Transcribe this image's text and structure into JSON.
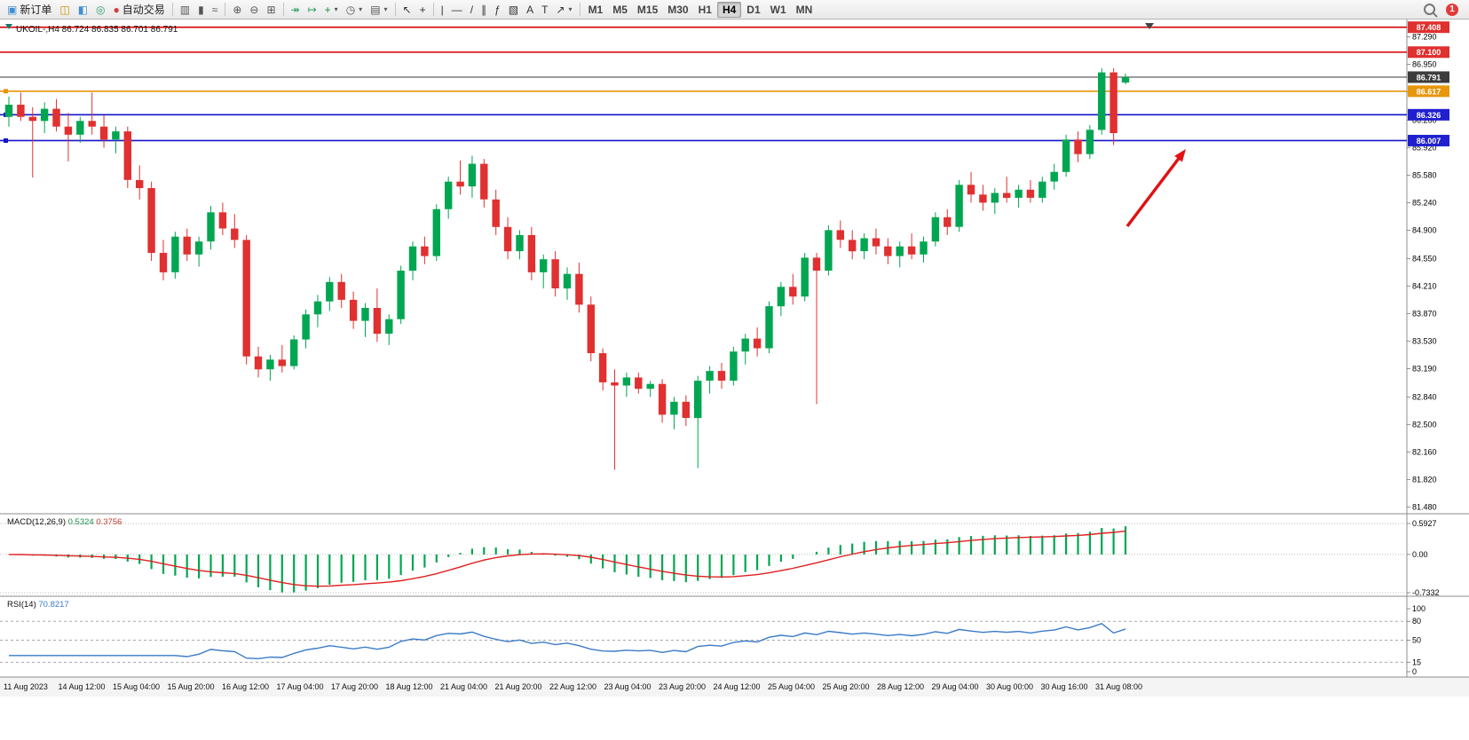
{
  "toolbar": {
    "items": [
      {
        "name": "new-order-button",
        "type": "button",
        "glyph": "▣",
        "glyph_color": "#3f8fd2",
        "label": "新订单"
      },
      {
        "name": "market-watch-icon",
        "type": "icon",
        "glyph": "◫",
        "glyph_color": "#c99700"
      },
      {
        "name": "data-window-icon",
        "type": "icon",
        "glyph": "◧",
        "glyph_color": "#3f8fd2"
      },
      {
        "name": "navigator-icon",
        "type": "icon",
        "glyph": "◎",
        "glyph_color": "#2e9e63"
      },
      {
        "name": "autotrading-button",
        "type": "button",
        "glyph": "●",
        "glyph_color": "#d43c3c",
        "label": "自动交易"
      },
      {
        "type": "sep"
      },
      {
        "name": "bar-chart-icon",
        "type": "icon",
        "glyph": "▥",
        "glyph_color": "#555555"
      },
      {
        "name": "candlestick-chart-icon",
        "type": "icon",
        "glyph": "▮",
        "glyph_color": "#555555"
      },
      {
        "name": "line-chart-icon",
        "type": "icon",
        "glyph": "≈",
        "glyph_color": "#555555"
      },
      {
        "type": "sep"
      },
      {
        "name": "zoom-in-icon",
        "type": "icon",
        "glyph": "⊕",
        "glyph_color": "#555555"
      },
      {
        "name": "zoom-out-icon",
        "type": "icon",
        "glyph": "⊖",
        "glyph_color": "#555555"
      },
      {
        "name": "tile-windows-icon",
        "type": "icon",
        "glyph": "⊞",
        "glyph_color": "#555555"
      },
      {
        "type": "sep"
      },
      {
        "name": "auto-scroll-icon",
        "type": "icon",
        "glyph": "↠",
        "glyph_color": "#2e9e63"
      },
      {
        "name": "chart-shift-icon",
        "type": "icon",
        "glyph": "↦",
        "glyph_color": "#2e9e63"
      },
      {
        "name": "indicators-button",
        "type": "icon",
        "glyph": "+",
        "glyph_color": "#1f8a4c",
        "caret": true
      },
      {
        "name": "periods-button",
        "type": "icon",
        "glyph": "◷",
        "glyph_color": "#555555",
        "caret": true
      },
      {
        "name": "templates-button",
        "type": "icon",
        "glyph": "▤",
        "glyph_color": "#555555",
        "caret": true
      },
      {
        "type": "sep"
      },
      {
        "name": "cursor-icon",
        "type": "icon",
        "glyph": "↖",
        "glyph_color": "#333333"
      },
      {
        "name": "crosshair-icon",
        "type": "icon",
        "glyph": "+",
        "glyph_color": "#333333"
      },
      {
        "type": "sep"
      },
      {
        "name": "vertical-line-icon",
        "type": "icon",
        "glyph": "|",
        "glyph_color": "#333333"
      },
      {
        "name": "horizontal-line-icon",
        "type": "icon",
        "glyph": "—",
        "glyph_color": "#333333"
      },
      {
        "name": "trendline-icon",
        "type": "icon",
        "glyph": "/",
        "glyph_color": "#333333"
      },
      {
        "name": "channel-icon",
        "type": "icon",
        "glyph": "∥",
        "glyph_color": "#333333"
      },
      {
        "name": "fibonacci-icon",
        "type": "icon",
        "glyph": "ƒ",
        "glyph_color": "#333333"
      },
      {
        "name": "shapes-icon",
        "type": "icon",
        "glyph": "▧",
        "glyph_color": "#333333"
      },
      {
        "name": "text-icon",
        "type": "icon",
        "glyph": "A",
        "glyph_color": "#333333"
      },
      {
        "name": "text-label-icon",
        "type": "icon",
        "glyph": "T",
        "glyph_color": "#333333"
      },
      {
        "name": "arrows-tool-icon",
        "type": "icon",
        "glyph": "↗",
        "glyph_color": "#333333",
        "caret": true
      },
      {
        "type": "sep"
      },
      {
        "name": "tf-m1",
        "type": "tf",
        "label": "M1"
      },
      {
        "name": "tf-m5",
        "type": "tf",
        "label": "M5"
      },
      {
        "name": "tf-m15",
        "type": "tf",
        "label": "M15"
      },
      {
        "name": "tf-m30",
        "type": "tf",
        "label": "M30"
      },
      {
        "name": "tf-h1",
        "type": "tf",
        "label": "H1"
      },
      {
        "name": "tf-h4",
        "type": "tf",
        "label": "H4",
        "active": true
      },
      {
        "name": "tf-d1",
        "type": "tf",
        "label": "D1"
      },
      {
        "name": "tf-w1",
        "type": "tf",
        "label": "W1"
      },
      {
        "name": "tf-mn",
        "type": "tf",
        "label": "MN"
      }
    ],
    "right": {
      "badge": "1"
    }
  },
  "chart_data": {
    "type": "candlestick",
    "title": "UKOIL-,H4",
    "ohlc_label": "86.724 86.835 86.701 86.791",
    "ylim": [
      81.44,
      87.47
    ],
    "colors": {
      "up": "#00A651",
      "down": "#E03030",
      "macd_hist": "#00A651",
      "macd_signal": "#E02020",
      "rsi_line": "#3A7BC8"
    },
    "candles": [
      [
        86.3,
        86.55,
        86.18,
        86.45
      ],
      [
        86.45,
        86.6,
        86.25,
        86.3
      ],
      [
        86.3,
        86.42,
        85.55,
        86.25
      ],
      [
        86.25,
        86.48,
        86.1,
        86.4
      ],
      [
        86.4,
        86.52,
        86.12,
        86.18
      ],
      [
        86.18,
        86.35,
        85.75,
        86.08
      ],
      [
        86.08,
        86.3,
        85.98,
        86.25
      ],
      [
        86.25,
        86.6,
        86.08,
        86.18
      ],
      [
        86.18,
        86.32,
        85.92,
        86.02
      ],
      [
        86.02,
        86.18,
        85.85,
        86.12
      ],
      [
        86.12,
        86.18,
        85.42,
        85.52
      ],
      [
        85.52,
        85.7,
        85.28,
        85.42
      ],
      [
        85.42,
        85.5,
        84.52,
        84.62
      ],
      [
        84.62,
        84.78,
        84.28,
        84.38
      ],
      [
        84.38,
        84.88,
        84.3,
        84.82
      ],
      [
        84.82,
        84.92,
        84.52,
        84.6
      ],
      [
        84.6,
        84.82,
        84.45,
        84.76
      ],
      [
        84.76,
        85.2,
        84.66,
        85.12
      ],
      [
        85.12,
        85.24,
        84.84,
        84.92
      ],
      [
        84.92,
        85.1,
        84.68,
        84.78
      ],
      [
        84.78,
        84.84,
        83.24,
        83.34
      ],
      [
        83.34,
        83.46,
        83.08,
        83.18
      ],
      [
        83.18,
        83.36,
        83.04,
        83.3
      ],
      [
        83.3,
        83.48,
        83.14,
        83.22
      ],
      [
        83.22,
        83.6,
        83.18,
        83.55
      ],
      [
        83.55,
        83.92,
        83.44,
        83.86
      ],
      [
        83.86,
        84.1,
        83.7,
        84.02
      ],
      [
        84.02,
        84.32,
        83.9,
        84.26
      ],
      [
        84.26,
        84.36,
        83.94,
        84.04
      ],
      [
        84.04,
        84.14,
        83.68,
        83.78
      ],
      [
        83.78,
        84.0,
        83.58,
        83.94
      ],
      [
        83.94,
        84.18,
        83.52,
        83.62
      ],
      [
        83.62,
        83.86,
        83.48,
        83.8
      ],
      [
        83.8,
        84.46,
        83.74,
        84.4
      ],
      [
        84.4,
        84.76,
        84.28,
        84.7
      ],
      [
        84.7,
        84.82,
        84.48,
        84.58
      ],
      [
        84.58,
        85.22,
        84.52,
        85.16
      ],
      [
        85.16,
        85.56,
        85.04,
        85.5
      ],
      [
        85.5,
        85.76,
        85.34,
        85.44
      ],
      [
        85.44,
        85.82,
        85.3,
        85.72
      ],
      [
        85.72,
        85.78,
        85.18,
        85.28
      ],
      [
        85.28,
        85.4,
        84.84,
        84.94
      ],
      [
        84.94,
        85.06,
        84.54,
        84.64
      ],
      [
        84.64,
        84.9,
        84.54,
        84.84
      ],
      [
        84.84,
        84.94,
        84.28,
        84.38
      ],
      [
        84.38,
        84.6,
        84.18,
        84.54
      ],
      [
        84.54,
        84.64,
        84.08,
        84.18
      ],
      [
        84.18,
        84.44,
        84.04,
        84.36
      ],
      [
        84.36,
        84.5,
        83.88,
        83.98
      ],
      [
        83.98,
        84.08,
        83.28,
        83.38
      ],
      [
        83.38,
        83.44,
        82.92,
        83.02
      ],
      [
        83.02,
        83.18,
        81.94,
        82.98
      ],
      [
        82.98,
        83.14,
        82.84,
        83.08
      ],
      [
        83.08,
        83.14,
        82.88,
        82.94
      ],
      [
        82.94,
        83.04,
        82.84,
        83.0
      ],
      [
        83.0,
        83.06,
        82.52,
        82.62
      ],
      [
        82.62,
        82.84,
        82.44,
        82.78
      ],
      [
        82.78,
        82.86,
        82.48,
        82.58
      ],
      [
        82.58,
        83.1,
        81.96,
        83.04
      ],
      [
        83.04,
        83.22,
        82.88,
        83.16
      ],
      [
        83.16,
        83.26,
        82.94,
        83.04
      ],
      [
        83.04,
        83.46,
        82.98,
        83.4
      ],
      [
        83.4,
        83.62,
        83.24,
        83.56
      ],
      [
        83.56,
        83.7,
        83.34,
        83.44
      ],
      [
        83.44,
        84.02,
        83.38,
        83.96
      ],
      [
        83.96,
        84.26,
        83.84,
        84.2
      ],
      [
        84.2,
        84.36,
        83.98,
        84.08
      ],
      [
        84.08,
        84.62,
        84.02,
        84.56
      ],
      [
        84.56,
        84.62,
        82.75,
        84.4
      ],
      [
        84.4,
        84.96,
        84.34,
        84.9
      ],
      [
        84.9,
        85.02,
        84.68,
        84.78
      ],
      [
        84.78,
        84.9,
        84.54,
        84.64
      ],
      [
        84.64,
        84.86,
        84.54,
        84.8
      ],
      [
        84.8,
        84.92,
        84.6,
        84.7
      ],
      [
        84.7,
        84.8,
        84.48,
        84.58
      ],
      [
        84.58,
        84.76,
        84.44,
        84.7
      ],
      [
        84.7,
        84.86,
        84.54,
        84.6
      ],
      [
        84.6,
        84.82,
        84.5,
        84.76
      ],
      [
        84.76,
        85.12,
        84.7,
        85.06
      ],
      [
        85.06,
        85.16,
        84.84,
        84.94
      ],
      [
        84.94,
        85.52,
        84.88,
        85.46
      ],
      [
        85.46,
        85.62,
        85.24,
        85.34
      ],
      [
        85.34,
        85.46,
        85.14,
        85.24
      ],
      [
        85.24,
        85.42,
        85.1,
        85.36
      ],
      [
        85.36,
        85.56,
        85.24,
        85.3
      ],
      [
        85.3,
        85.46,
        85.18,
        85.4
      ],
      [
        85.4,
        85.52,
        85.24,
        85.3
      ],
      [
        85.3,
        85.56,
        85.24,
        85.5
      ],
      [
        85.5,
        85.72,
        85.4,
        85.62
      ],
      [
        85.62,
        86.08,
        85.56,
        86.02
      ],
      [
        86.02,
        86.12,
        85.74,
        85.84
      ],
      [
        85.84,
        86.2,
        85.78,
        86.14
      ],
      [
        86.14,
        86.9,
        86.08,
        86.85
      ],
      [
        86.85,
        86.9,
        85.95,
        86.1
      ],
      [
        86.724,
        86.835,
        86.701,
        86.791
      ]
    ],
    "price_ticks": [
      "87.290",
      "86.950",
      "86.610",
      "86.260",
      "85.920",
      "85.580",
      "85.240",
      "84.900",
      "84.550",
      "84.210",
      "83.870",
      "83.530",
      "83.190",
      "82.840",
      "82.500",
      "82.160",
      "81.820",
      "81.480"
    ],
    "price_tags": [
      {
        "label": "87.408",
        "price": 87.408,
        "color": "#e03030"
      },
      {
        "label": "87.100",
        "price": 87.1,
        "color": "#e03030"
      },
      {
        "label": "86.791",
        "price": 86.791,
        "color": "#3c3c3c"
      },
      {
        "label": "86.617",
        "price": 86.617,
        "color": "#e8960c"
      },
      {
        "label": "86.326",
        "price": 86.326,
        "color": "#2020d0"
      },
      {
        "label": "86.007",
        "price": 86.007,
        "color": "#2020d0"
      }
    ],
    "hlines": [
      {
        "price": 87.408,
        "color": "#d40000",
        "width": 1.6,
        "handle": false
      },
      {
        "price": 87.1,
        "color": "#d40000",
        "width": 1.6,
        "handle": false
      },
      {
        "price": 86.791,
        "color": "#4d4d4d",
        "width": 1.1,
        "handle": false
      },
      {
        "price": 86.617,
        "color": "#e8960c",
        "width": 1.6,
        "handle": true
      },
      {
        "price": 86.326,
        "color": "#1414c8",
        "width": 1.6,
        "handle": true
      },
      {
        "price": 86.007,
        "color": "#1414c8",
        "width": 1.6,
        "handle": true
      }
    ],
    "arrow": {
      "tail": [
        1270,
        233
      ],
      "head": [
        1336,
        146
      ],
      "color": "#e01212"
    },
    "x_labels": [
      "11 Aug 2023",
      "14 Aug 12:00",
      "15 Aug 04:00",
      "15 Aug 20:00",
      "16 Aug 12:00",
      "17 Aug 04:00",
      "17 Aug 20:00",
      "18 Aug 12:00",
      "21 Aug 04:00",
      "21 Aug 20:00",
      "22 Aug 12:00",
      "23 Aug 04:00",
      "23 Aug 20:00",
      "24 Aug 12:00",
      "25 Aug 04:00",
      "25 Aug 20:00",
      "28 Aug 12:00",
      "29 Aug 04:00",
      "30 Aug 00:00",
      "30 Aug 16:00",
      "31 Aug 08:00"
    ],
    "indicators": {
      "macd": {
        "label": "MACD(12,26,9)",
        "main_value": "0.5324",
        "signal_value": "0.3756",
        "ylim": [
          -0.7332,
          0.5927
        ],
        "scale_labels": [
          "0.5927",
          "0.00",
          "-0.7332"
        ],
        "params": [
          12,
          26,
          9
        ]
      },
      "rsi": {
        "label": "RSI(14)",
        "value": "70.8217",
        "period": 14,
        "scale_labels": [
          "100",
          "80",
          "50",
          "15",
          "0"
        ],
        "levels": [
          80,
          50,
          15
        ]
      }
    }
  }
}
